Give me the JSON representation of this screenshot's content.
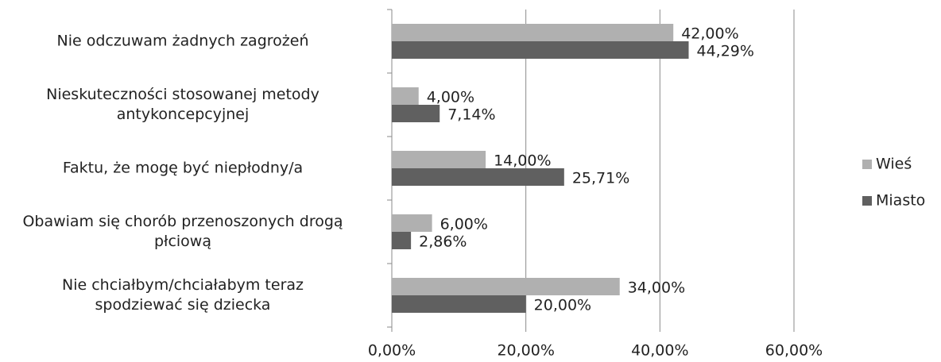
{
  "chart_data": {
    "type": "bar",
    "orientation": "horizontal",
    "categories": [
      "Nie odczuwam żadnych zagrożeń",
      "Nieskuteczności stosowanej metody\nantykoncepcyjnej",
      "Faktu, że mogę być niepłodny/a",
      "Obawiam się chorób przenoszonych drogą\npłciową",
      "Nie chciałbym/chciałabym teraz\nspodziewać się dziecka"
    ],
    "series": [
      {
        "name": "Wieś",
        "color": "#b0b0b0",
        "values": [
          42,
          4,
          14,
          6,
          34
        ],
        "value_labels": [
          "42,00%",
          "4,00%",
          "14,00%",
          "6,00%",
          "34,00%"
        ]
      },
      {
        "name": "Miasto",
        "color": "#606060",
        "values": [
          44.29,
          7.14,
          25.71,
          2.86,
          20
        ],
        "value_labels": [
          "44,29%",
          "7,14%",
          "25,71%",
          "2,86%",
          "20,00%"
        ]
      }
    ],
    "xlim": [
      0,
      60
    ],
    "xticks": [
      {
        "value": 0,
        "label": "0,00%"
      },
      {
        "value": 20,
        "label": "20,00%"
      },
      {
        "value": 40,
        "label": "40,00%"
      },
      {
        "value": 60,
        "label": "60,00%"
      }
    ],
    "grid": true,
    "legend": "right"
  }
}
